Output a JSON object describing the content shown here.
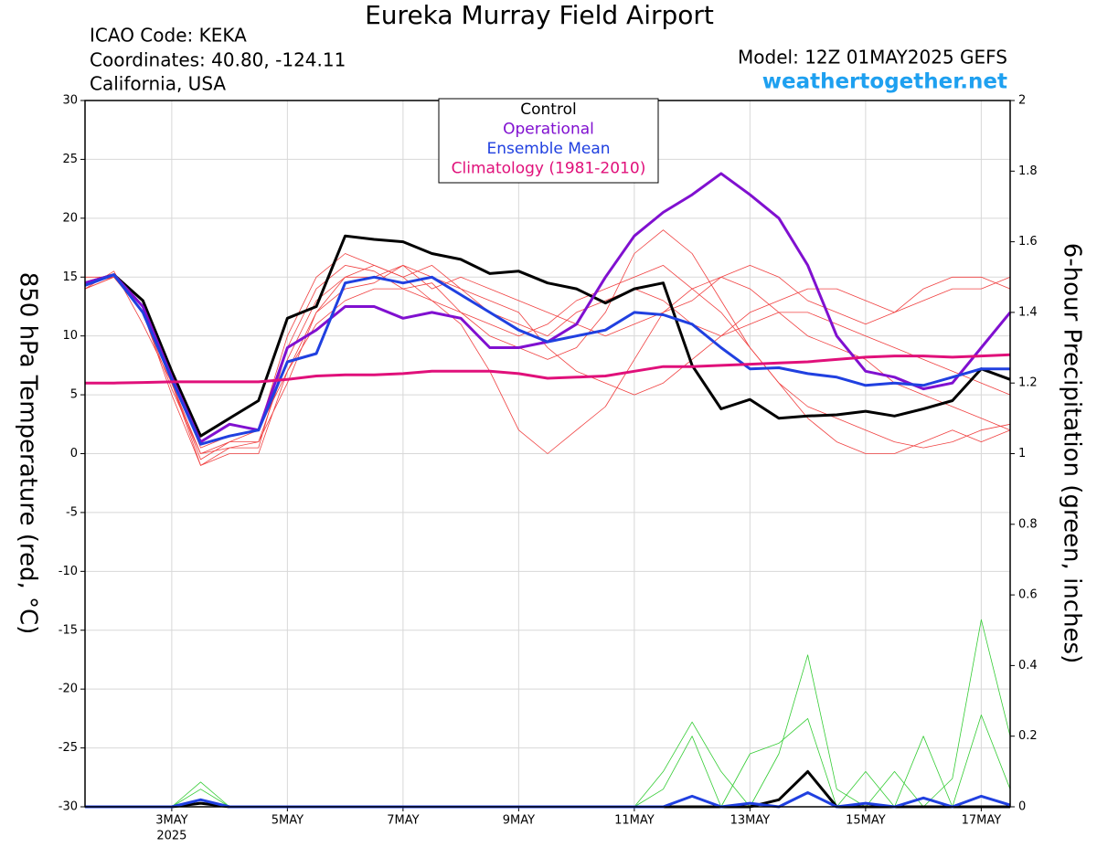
{
  "chart_data": {
    "type": "line",
    "title": "Eureka Murray Field Airport",
    "info_left": [
      "ICAO Code: KEKA",
      "Coordinates: 40.80, -124.11",
      "California, USA"
    ],
    "info_right": "Model: 12Z 01MAY2025 GEFS",
    "site": "weathertogether.net",
    "y_label": "850 hPa Temperature (red, °C)",
    "y2_label": "6-hour Precipitation (green, inches)",
    "x_sublabel": "2025",
    "grid": true,
    "legend": "top-center",
    "x": [
      1.5,
      2,
      2.5,
      3,
      3.5,
      4,
      4.5,
      5,
      5.5,
      6,
      6.5,
      7,
      7.5,
      8,
      8.5,
      9,
      9.5,
      10,
      10.5,
      11,
      11.5,
      12,
      12.5,
      13,
      13.5,
      14,
      14.5,
      15,
      15.5,
      16,
      16.5,
      17,
      17.5
    ],
    "xlim": [
      1.5,
      17.5
    ],
    "xticks": [
      {
        "value": 3,
        "label": "3MAY"
      },
      {
        "value": 5,
        "label": "5MAY"
      },
      {
        "value": 7,
        "label": "7MAY"
      },
      {
        "value": 9,
        "label": "9MAY"
      },
      {
        "value": 11,
        "label": "11MAY"
      },
      {
        "value": 13,
        "label": "13MAY"
      },
      {
        "value": 15,
        "label": "15MAY"
      },
      {
        "value": 17,
        "label": "17MAY"
      }
    ],
    "ylim": [
      -30,
      30
    ],
    "yticks": [
      -30,
      -25,
      -20,
      -15,
      -10,
      -5,
      0,
      5,
      10,
      15,
      20,
      25,
      30
    ],
    "y2lim": [
      0,
      2
    ],
    "y2ticks": [
      0,
      0.2,
      0.4,
      0.6,
      0.8,
      1,
      1.2,
      1.4,
      1.6,
      1.8,
      2
    ],
    "series": [
      {
        "color": "#f04040",
        "values": [
          14,
          15,
          12,
          5,
          -1,
          0.5,
          0.5,
          9,
          14,
          16,
          15.5,
          14,
          14.5,
          12,
          10,
          9,
          8,
          9,
          12,
          17,
          19,
          17,
          13,
          9,
          6,
          4,
          3,
          2,
          1,
          0.5,
          1,
          2,
          2.5
        ]
      },
      {
        "color": "#f04040",
        "values": [
          14.5,
          15,
          13,
          6,
          0,
          1,
          2,
          10,
          15,
          17,
          16,
          15,
          13,
          11,
          7,
          2,
          0,
          2,
          4,
          8,
          12,
          14,
          15,
          14,
          12,
          10,
          9,
          8,
          6,
          5,
          4,
          3,
          2
        ]
      },
      {
        "color": "#f04040",
        "values": [
          14,
          15.5,
          11,
          6,
          -0.5,
          1,
          1,
          8,
          13,
          15,
          16,
          15,
          16,
          14,
          12,
          11,
          10,
          12,
          13,
          14,
          13,
          11,
          10,
          12,
          13,
          14,
          14,
          13,
          12,
          14,
          15,
          15,
          14
        ]
      },
      {
        "color": "#f04040",
        "values": [
          15,
          15,
          12,
          5.5,
          0,
          0.5,
          1,
          6,
          12,
          14,
          14.5,
          16,
          15,
          14,
          13,
          12,
          9,
          7,
          6,
          5,
          6,
          8,
          10,
          11,
          12,
          12,
          11,
          10,
          9,
          8,
          7,
          6,
          5
        ]
      },
      {
        "color": "#f04040",
        "values": [
          14,
          15,
          12.5,
          6.5,
          0.5,
          1.5,
          2,
          7,
          11,
          13,
          14,
          14,
          13,
          12,
          11,
          10,
          11,
          13,
          14,
          15,
          16,
          14,
          12,
          9,
          6,
          3,
          1,
          0,
          0,
          1,
          2,
          1,
          2
        ]
      },
      {
        "color": "#f04040",
        "values": [
          14.5,
          15,
          12,
          6,
          -1,
          0,
          0,
          7,
          12,
          15,
          15,
          16,
          14,
          15,
          14,
          13,
          12,
          11,
          10,
          11,
          12,
          13,
          15,
          16,
          15,
          13,
          12,
          11,
          12,
          13,
          14,
          14,
          15
        ]
      },
      {
        "color": "#33cc33",
        "axis": "y2",
        "values": [
          0,
          0,
          0,
          0,
          0.05,
          0,
          0,
          0,
          0,
          0,
          0,
          0,
          0,
          0,
          0,
          0,
          0,
          0,
          0,
          0,
          0.1,
          0.24,
          0.1,
          0,
          0.15,
          0.43,
          0.05,
          0,
          0.1,
          0,
          0.08,
          0.53,
          0.2
        ]
      },
      {
        "color": "#33cc33",
        "axis": "y2",
        "values": [
          0,
          0,
          0,
          0,
          0.07,
          0,
          0,
          0,
          0,
          0,
          0,
          0,
          0,
          0,
          0,
          0,
          0,
          0,
          0,
          0,
          0.05,
          0.2,
          0,
          0.15,
          0.18,
          0.25,
          0,
          0.1,
          0,
          0.2,
          0,
          0.26,
          0.05
        ]
      },
      {
        "name": "Control",
        "color": "#000000",
        "values": [
          14.5,
          15.2,
          13,
          7,
          1.5,
          3,
          4.5,
          11.5,
          12.5,
          18.5,
          18.2,
          18,
          17,
          16.5,
          15.3,
          15.5,
          14.5,
          14,
          12.8,
          14,
          14.5,
          7.5,
          3.8,
          4.6,
          3,
          3.2,
          3.3,
          3.6,
          3.2,
          3.8,
          4.5,
          7.2,
          6.3
        ]
      },
      {
        "name": "Operational",
        "color": "#8010d0",
        "values": [
          14.5,
          15.2,
          12.5,
          6.5,
          1,
          2.5,
          2,
          9,
          10.5,
          12.5,
          12.5,
          11.5,
          12,
          11.5,
          9,
          9,
          9.5,
          11,
          15,
          18.5,
          20.5,
          22,
          23.8,
          22,
          20,
          16,
          10,
          7,
          6.5,
          5.5,
          6,
          9,
          12
        ]
      },
      {
        "name": "Ensemble Mean",
        "color": "#2040e0",
        "values": [
          14.3,
          15.2,
          12,
          6.3,
          0.8,
          1.5,
          2,
          7.8,
          8.5,
          14.5,
          15,
          14.5,
          15,
          13.5,
          12,
          10.5,
          9.5,
          10,
          10.5,
          12,
          11.8,
          11,
          9,
          7.2,
          7.3,
          6.8,
          6.5,
          5.8,
          6,
          5.8,
          6.5,
          7.2,
          7.2
        ]
      },
      {
        "name": "Climatology (1981-2010)",
        "color": "#e0107a",
        "values": [
          6,
          6,
          6.05,
          6.1,
          6.1,
          6.1,
          6.1,
          6.3,
          6.6,
          6.7,
          6.7,
          6.8,
          7,
          7,
          7,
          6.8,
          6.4,
          6.5,
          6.6,
          7,
          7.4,
          7.4,
          7.5,
          7.6,
          7.7,
          7.8,
          8,
          8.2,
          8.3,
          8.3,
          8.2,
          8.3,
          8.4
        ]
      },
      {
        "color": "#000000",
        "axis": "y2",
        "values": [
          0,
          0,
          0,
          0,
          0.01,
          0,
          0,
          0,
          0,
          0,
          0,
          0,
          0,
          0,
          0,
          0,
          0,
          0,
          0,
          0,
          0,
          0,
          0,
          0,
          0.02,
          0.1,
          0,
          0,
          0,
          0,
          0,
          0,
          0
        ]
      },
      {
        "color": "#2040e0",
        "axis": "y2",
        "values": [
          0,
          0,
          0,
          0,
          0.02,
          0,
          0,
          0,
          0,
          0,
          0,
          0,
          0,
          0,
          0,
          0,
          0,
          0,
          0,
          0,
          0,
          0.03,
          0,
          0.01,
          0,
          0.04,
          0,
          0.01,
          0,
          0.025,
          0,
          0.03,
          0.005
        ]
      }
    ]
  }
}
